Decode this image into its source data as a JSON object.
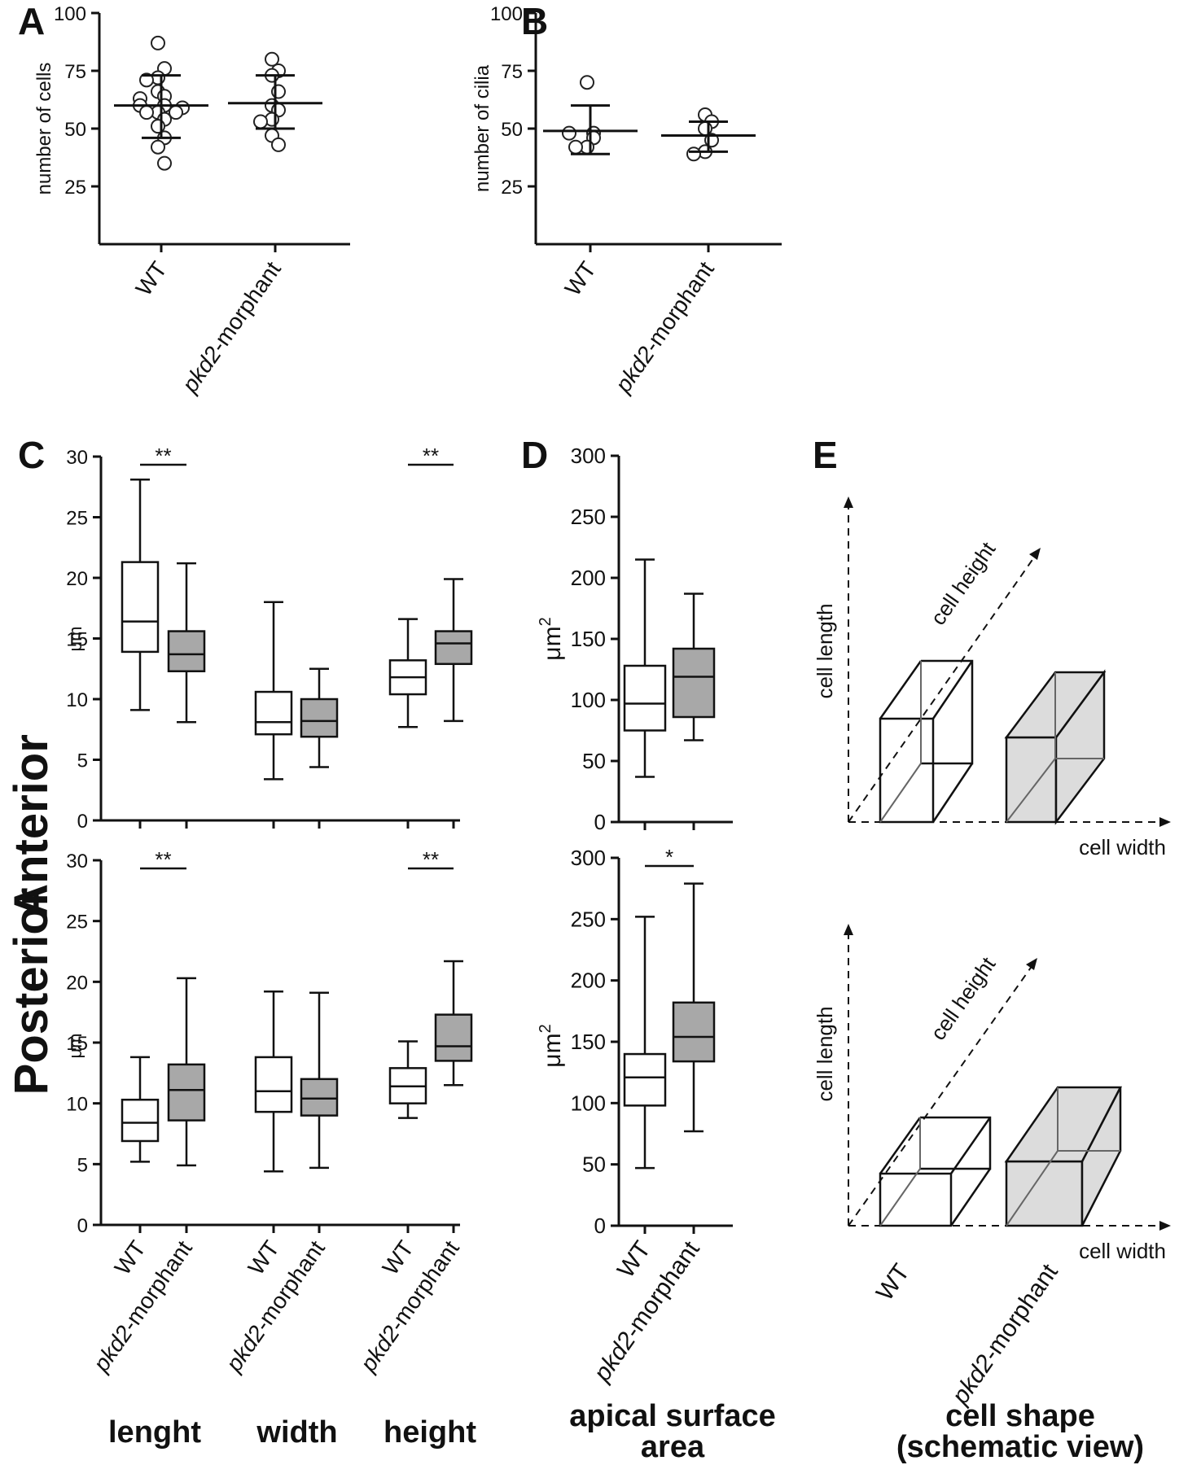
{
  "figure": {
    "panel_letters": [
      "A",
      "B",
      "C",
      "D",
      "E"
    ],
    "row_labels": [
      "Anterior",
      "Posterior"
    ],
    "measure_labels": {
      "length": "lenght",
      "width": "width",
      "height": "height"
    },
    "area_label": [
      "apical surface",
      "area"
    ],
    "shape_label": [
      "cell shape",
      "(schematic view)"
    ],
    "group_labels": {
      "wt": "WT",
      "morph_italic": "pkd2",
      "morph_rest": "-morphant"
    }
  },
  "chart_data": [
    {
      "id": "A",
      "type": "scatter",
      "ylabel": "number of cells",
      "ylim": [
        0,
        100
      ],
      "yticks": [
        25,
        50,
        75,
        100
      ],
      "categories": [
        "WT",
        "pkd2-morphant"
      ],
      "series": [
        {
          "category": "WT",
          "mean": 60,
          "sd_low": 46,
          "sd_high": 73,
          "points": [
            87,
            76,
            72,
            71,
            66,
            64,
            63,
            60,
            60,
            59,
            57,
            57,
            57,
            54,
            51,
            46,
            42,
            35
          ]
        },
        {
          "category": "pkd2-morphant",
          "mean": 61,
          "sd_low": 50,
          "sd_high": 73,
          "points": [
            80,
            75,
            73,
            66,
            60,
            58,
            54,
            53,
            47,
            43
          ]
        }
      ]
    },
    {
      "id": "B",
      "type": "scatter",
      "ylabel": "number of cilia",
      "ylim": [
        0,
        100
      ],
      "yticks": [
        25,
        50,
        75,
        100
      ],
      "categories": [
        "WT",
        "pkd2-morphant"
      ],
      "series": [
        {
          "category": "WT",
          "mean": 49,
          "sd_low": 39,
          "sd_high": 60,
          "points": [
            70,
            48,
            48,
            46,
            42,
            42
          ]
        },
        {
          "category": "pkd2-morphant",
          "mean": 47,
          "sd_low": 40,
          "sd_high": 53,
          "points": [
            56,
            53,
            50,
            45,
            40,
            39
          ]
        }
      ]
    },
    {
      "id": "C-anterior",
      "type": "box",
      "ylabel": "μm",
      "ylim": [
        0,
        30
      ],
      "yticks": [
        0,
        5,
        10,
        15,
        20,
        25,
        30
      ],
      "categories": [
        "WT",
        "pkd2-morphant",
        "WT",
        "pkd2-morphant",
        "WT",
        "pkd2-morphant"
      ],
      "boxes": [
        {
          "min": 9.1,
          "q1": 13.9,
          "median": 16.4,
          "q3": 21.3,
          "max": 28.1,
          "filled": false
        },
        {
          "min": 8.1,
          "q1": 12.3,
          "median": 13.7,
          "q3": 15.6,
          "max": 21.2,
          "filled": true
        },
        {
          "min": 3.4,
          "q1": 7.1,
          "median": 8.1,
          "q3": 10.6,
          "max": 18.0,
          "filled": false
        },
        {
          "min": 4.4,
          "q1": 6.9,
          "median": 8.2,
          "q3": 10.0,
          "max": 12.5,
          "filled": true
        },
        {
          "min": 7.7,
          "q1": 10.4,
          "median": 11.8,
          "q3": 13.2,
          "max": 16.6,
          "filled": false
        },
        {
          "min": 8.2,
          "q1": 12.9,
          "median": 14.6,
          "q3": 15.6,
          "max": 19.9,
          "filled": true
        }
      ],
      "significance": [
        {
          "from": 0,
          "to": 1,
          "label": "**"
        },
        {
          "from": 4,
          "to": 5,
          "label": "**"
        }
      ]
    },
    {
      "id": "C-posterior",
      "type": "box",
      "ylabel": "μm",
      "ylim": [
        0,
        30
      ],
      "yticks": [
        0,
        5,
        10,
        15,
        20,
        25,
        30
      ],
      "categories": [
        "WT",
        "pkd2-morphant",
        "WT",
        "pkd2-morphant",
        "WT",
        "pkd2-morphant"
      ],
      "boxes": [
        {
          "min": 5.2,
          "q1": 6.9,
          "median": 8.4,
          "q3": 10.3,
          "max": 13.8,
          "filled": false
        },
        {
          "min": 4.9,
          "q1": 8.6,
          "median": 11.1,
          "q3": 13.2,
          "max": 20.3,
          "filled": true
        },
        {
          "min": 4.4,
          "q1": 9.3,
          "median": 11.0,
          "q3": 13.8,
          "max": 19.2,
          "filled": false
        },
        {
          "min": 4.7,
          "q1": 9.0,
          "median": 10.4,
          "q3": 12.0,
          "max": 19.1,
          "filled": true
        },
        {
          "min": 8.8,
          "q1": 10.0,
          "median": 11.4,
          "q3": 12.9,
          "max": 15.1,
          "filled": false
        },
        {
          "min": 11.5,
          "q1": 13.5,
          "median": 14.7,
          "q3": 17.3,
          "max": 21.7,
          "filled": true
        }
      ],
      "significance": [
        {
          "from": 0,
          "to": 1,
          "label": "**"
        },
        {
          "from": 4,
          "to": 5,
          "label": "**"
        }
      ]
    },
    {
      "id": "D-anterior",
      "type": "box",
      "ylabel": "μm²",
      "ylim": [
        0,
        300
      ],
      "yticks": [
        0,
        50,
        100,
        150,
        200,
        250,
        300
      ],
      "categories": [
        "WT",
        "pkd2-morphant"
      ],
      "boxes": [
        {
          "min": 37,
          "q1": 75,
          "median": 97,
          "q3": 128,
          "max": 215,
          "filled": false
        },
        {
          "min": 67,
          "q1": 86,
          "median": 119,
          "q3": 142,
          "max": 187,
          "filled": true
        }
      ],
      "significance": []
    },
    {
      "id": "D-posterior",
      "type": "box",
      "ylabel": "μm²",
      "ylim": [
        0,
        300
      ],
      "yticks": [
        0,
        50,
        100,
        150,
        200,
        250,
        300
      ],
      "categories": [
        "WT",
        "pkd2-morphant"
      ],
      "boxes": [
        {
          "min": 47,
          "q1": 98,
          "median": 121,
          "q3": 140,
          "max": 252,
          "filled": false
        },
        {
          "min": 77,
          "q1": 134,
          "median": 154,
          "q3": 182,
          "max": 279,
          "filled": true
        }
      ],
      "significance": [
        {
          "from": 0,
          "to": 1,
          "label": "*"
        }
      ]
    }
  ],
  "schematic": {
    "axis_labels": {
      "length": "cell length",
      "height": "cell height",
      "width": "cell width"
    }
  }
}
